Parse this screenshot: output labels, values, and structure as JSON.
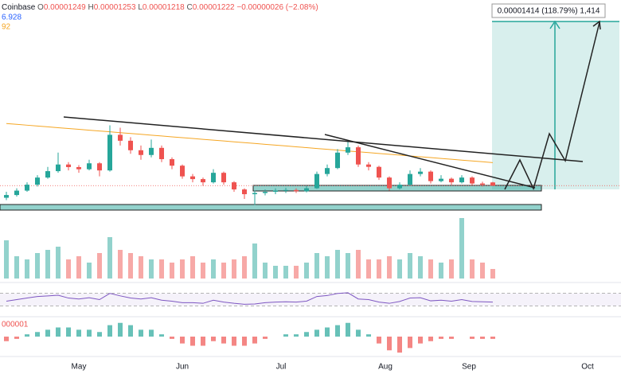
{
  "header": {
    "exchange": "Coinbase",
    "open": "0.00001249",
    "high": "0.00001253",
    "low": "0.00001218",
    "close": "0.00001222",
    "change": "−0.00000026 (−2.08%)",
    "indicator_1": "6.928",
    "indicator_2": "92",
    "indicator_3": "000001"
  },
  "measure_label": "0.00001414 (118.79%) 1,414",
  "x_labels": [
    "May",
    "Jun",
    "Jul",
    "Aug",
    "Sep",
    "Oct"
  ],
  "chart_data": {
    "type": "candlestick",
    "ylim": [
      9.76e-06,
      2.785e-05
    ],
    "up_color": "#26a69a",
    "down_color": "#ef5350",
    "ma_color": "#f5a623",
    "open": [
      1.12e-05,
      1.143e-05,
      1.18e-05,
      1.23e-05,
      1.29e-05,
      1.344e-05,
      1.4e-05,
      1.378e-05,
      1.36e-05,
      1.41e-05,
      1.35e-05,
      1.65e-05,
      1.6e-05,
      1.52e-05,
      1.48e-05,
      1.54e-05,
      1.445e-05,
      1.39e-05,
      1.3e-05,
      1.277e-05,
      1.25e-05,
      1.33e-05,
      1.25e-05,
      1.19e-05,
      1.15e-05,
      1.16e-05,
      1.17e-05,
      1.18e-05,
      1.185e-05,
      1.175e-05,
      1.2e-05,
      1.32e-05,
      1.37e-05,
      1.5e-05,
      1.545e-05,
      1.4e-05,
      1.38e-05,
      1.29e-05,
      1.2e-05,
      1.23e-05,
      1.32e-05,
      1.34e-05,
      1.26e-05,
      1.28e-05,
      1.25e-05,
      1.29e-05,
      1.24e-05,
      1.249e-05
    ],
    "high": [
      1.17e-05,
      1.2e-05,
      1.25e-05,
      1.31e-05,
      1.38e-05,
      1.5e-05,
      1.42e-05,
      1.395e-05,
      1.44e-05,
      1.42e-05,
      1.73e-05,
      1.71e-05,
      1.63e-05,
      1.56e-05,
      1.61e-05,
      1.56e-05,
      1.46e-05,
      1.4e-05,
      1.32e-05,
      1.29e-05,
      1.36e-05,
      1.34e-05,
      1.26e-05,
      1.2e-05,
      1.18e-05,
      1.19e-05,
      1.2e-05,
      1.205e-05,
      1.2e-05,
      1.22e-05,
      1.34e-05,
      1.4e-05,
      1.53e-05,
      1.59e-05,
      1.56e-05,
      1.42e-05,
      1.39e-05,
      1.3e-05,
      1.25e-05,
      1.35e-05,
      1.37e-05,
      1.35e-05,
      1.31e-05,
      1.29e-05,
      1.31e-05,
      1.3e-05,
      1.255e-05,
      1.253e-05
    ],
    "low": [
      1.1e-05,
      1.13e-05,
      1.17e-05,
      1.215e-05,
      1.28e-05,
      1.33e-05,
      1.35e-05,
      1.33e-05,
      1.35e-05,
      1.3e-05,
      1.34e-05,
      1.56e-05,
      1.49e-05,
      1.44e-05,
      1.46e-05,
      1.42e-05,
      1.36e-05,
      1.28e-05,
      1.25e-05,
      1.22e-05,
      1.24e-05,
      1.23e-05,
      1.17e-05,
      1.11e-05,
      1.06e-05,
      1.14e-05,
      1.15e-05,
      1.16e-05,
      1.16e-05,
      1.165e-05,
      1.195e-05,
      1.3e-05,
      1.36e-05,
      1.48e-05,
      1.38e-05,
      1.35e-05,
      1.27e-05,
      1.18e-05,
      1.19e-05,
      1.22e-05,
      1.3e-05,
      1.24e-05,
      1.25e-05,
      1.23e-05,
      1.24e-05,
      1.225e-05,
      1.215e-05,
      1.218e-05
    ],
    "close": [
      1.143e-05,
      1.18e-05,
      1.23e-05,
      1.29e-05,
      1.344e-05,
      1.4e-05,
      1.378e-05,
      1.36e-05,
      1.41e-05,
      1.35e-05,
      1.65e-05,
      1.6e-05,
      1.52e-05,
      1.48e-05,
      1.54e-05,
      1.445e-05,
      1.39e-05,
      1.3e-05,
      1.277e-05,
      1.25e-05,
      1.33e-05,
      1.25e-05,
      1.19e-05,
      1.15e-05,
      1.16e-05,
      1.17e-05,
      1.18e-05,
      1.185e-05,
      1.175e-05,
      1.2e-05,
      1.32e-05,
      1.37e-05,
      1.5e-05,
      1.545e-05,
      1.4e-05,
      1.38e-05,
      1.29e-05,
      1.2e-05,
      1.23e-05,
      1.32e-05,
      1.34e-05,
      1.26e-05,
      1.28e-05,
      1.25e-05,
      1.29e-05,
      1.24e-05,
      1.23e-05,
      1.222e-05
    ],
    "ma": [
      1.745e-05,
      1.738e-05,
      1.731e-05,
      1.724e-05,
      1.717e-05,
      1.71e-05,
      1.703e-05,
      1.696e-05,
      1.689e-05,
      1.682e-05,
      1.675e-05,
      1.668e-05,
      1.661e-05,
      1.654e-05,
      1.647e-05,
      1.64e-05,
      1.633e-05,
      1.626e-05,
      1.619e-05,
      1.612e-05,
      1.605e-05,
      1.598e-05,
      1.591e-05,
      1.584e-05,
      1.577e-05,
      1.57e-05,
      1.563e-05,
      1.556e-05,
      1.549e-05,
      1.542e-05,
      1.535e-05,
      1.528e-05,
      1.521e-05,
      1.514e-05,
      1.507e-05,
      1.5e-05,
      1.493e-05,
      1.486e-05,
      1.479e-05,
      1.472e-05,
      1.465e-05,
      1.458e-05,
      1.451e-05,
      1.444e-05,
      1.437e-05,
      1.43e-05,
      1.423e-05,
      1.416e-05
    ],
    "volume": [
      60,
      35,
      30,
      40,
      45,
      50,
      30,
      35,
      25,
      40,
      65,
      45,
      40,
      35,
      30,
      30,
      25,
      30,
      35,
      25,
      30,
      25,
      30,
      35,
      55,
      25,
      20,
      20,
      20,
      25,
      40,
      35,
      45,
      40,
      45,
      30,
      30,
      35,
      30,
      40,
      35,
      30,
      25,
      30,
      95,
      30,
      25,
      15
    ],
    "volume_ylim": [
      0,
      100
    ],
    "rsi": [
      45,
      50,
      55,
      60,
      62,
      64,
      55,
      52,
      56,
      50,
      70,
      62,
      55,
      52,
      56,
      48,
      45,
      40,
      40,
      38,
      48,
      42,
      38,
      35,
      36,
      40,
      42,
      43,
      42,
      45,
      60,
      63,
      70,
      72,
      52,
      50,
      42,
      38,
      44,
      55,
      56,
      46,
      48,
      45,
      50,
      44,
      43,
      42
    ],
    "rsi_ylim": [
      0,
      100
    ],
    "rsi_bands": [
      30,
      70
    ],
    "rsi_color": "#7e57c2",
    "macd_hist": [
      -2,
      -1,
      1,
      2,
      3,
      4,
      4,
      3,
      3,
      2,
      5,
      6,
      5,
      3,
      3,
      1,
      -1,
      -3,
      -4,
      -4,
      -2,
      -3,
      -4,
      -4,
      -3,
      -1,
      0,
      1,
      1,
      2,
      3,
      4,
      5,
      6,
      3,
      1,
      -3,
      -6,
      -7,
      -5,
      -3,
      -2,
      -1,
      -1,
      0,
      -1,
      -1,
      -1
    ],
    "macd_ylim": [
      -8,
      8
    ]
  }
}
